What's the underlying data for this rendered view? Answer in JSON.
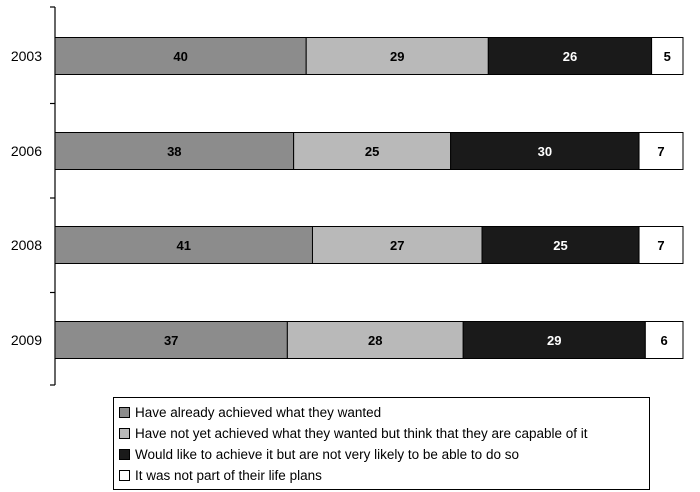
{
  "chart_data": {
    "type": "bar",
    "orientation": "horizontal",
    "stacked": true,
    "categories": [
      "2003",
      "2006",
      "2008",
      "2009"
    ],
    "series": [
      {
        "name": "Have already achieved what they wanted",
        "color": "#8c8c8c",
        "label_color": "#000000",
        "values": [
          40,
          38,
          41,
          37
        ]
      },
      {
        "name": "Have not yet achieved what they wanted but think that they are capable of it",
        "color": "#b9b9b9",
        "label_color": "#000000",
        "values": [
          29,
          25,
          27,
          28
        ]
      },
      {
        "name": "Would like to achieve it but are not very likely to be able to do so",
        "color": "#1a1a1a",
        "label_color": "#ffffff",
        "values": [
          26,
          30,
          25,
          29
        ]
      },
      {
        "name": "It was not part of their life plans",
        "color": "#ffffff",
        "label_color": "#000000",
        "values": [
          5,
          7,
          7,
          6
        ]
      }
    ],
    "title": "",
    "xlabel": "",
    "ylabel": "",
    "grid": false,
    "legend_position": "bottom"
  }
}
